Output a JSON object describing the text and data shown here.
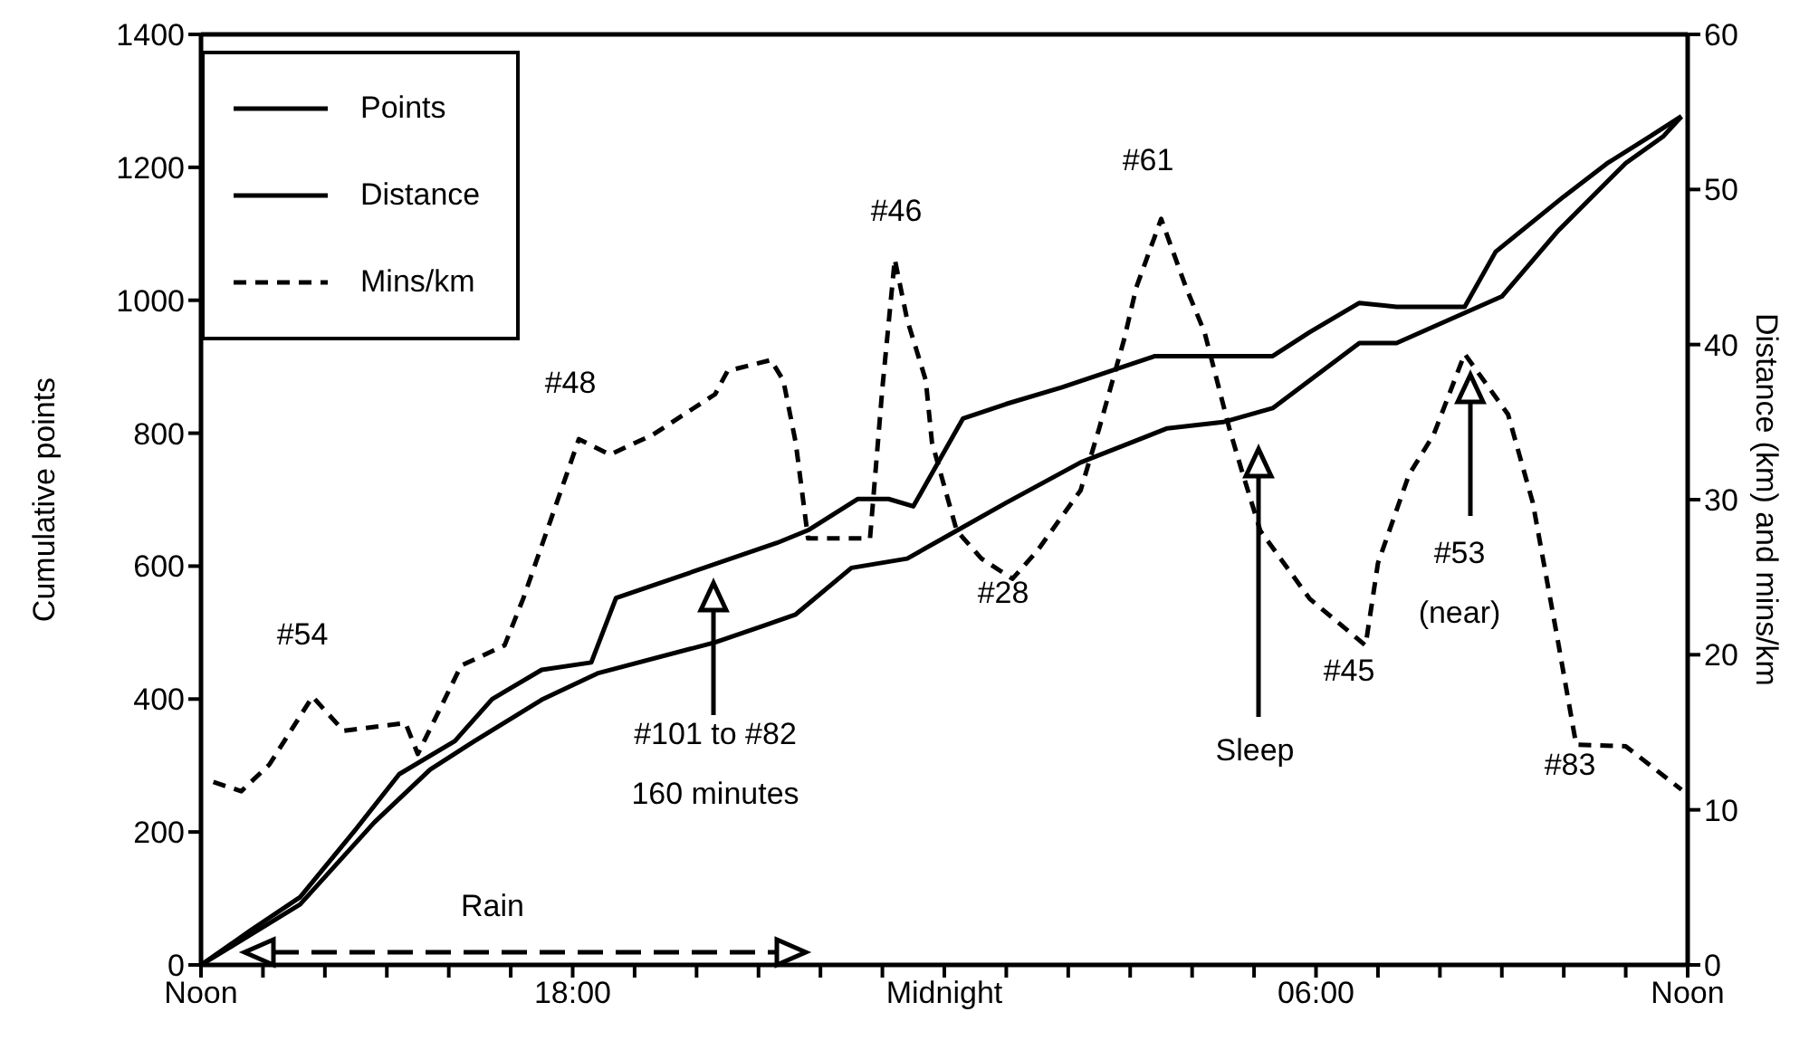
{
  "chart_data": {
    "type": "line",
    "xlim": [
      "2000-01-01T12:00",
      "2000-01-02T12:00"
    ],
    "xticks": [
      {
        "value": "2000-01-01T12:00",
        "label": "Noon"
      },
      {
        "value": "2000-01-01T13:00",
        "label": null
      },
      {
        "value": "2000-01-01T14:00",
        "label": null
      },
      {
        "value": "2000-01-01T15:00",
        "label": null
      },
      {
        "value": "2000-01-01T16:00",
        "label": null
      },
      {
        "value": "2000-01-01T17:00",
        "label": null
      },
      {
        "value": "2000-01-01T18:00",
        "label": "18:00"
      },
      {
        "value": "2000-01-01T19:00",
        "label": null
      },
      {
        "value": "2000-01-01T20:00",
        "label": null
      },
      {
        "value": "2000-01-01T21:00",
        "label": null
      },
      {
        "value": "2000-01-01T22:00",
        "label": null
      },
      {
        "value": "2000-01-01T23:00",
        "label": null
      },
      {
        "value": "2000-01-02T00:00",
        "label": "Midnight"
      },
      {
        "value": "2000-01-02T01:00",
        "label": null
      },
      {
        "value": "2000-01-02T02:00",
        "label": null
      },
      {
        "value": "2000-01-02T03:00",
        "label": null
      },
      {
        "value": "2000-01-02T04:00",
        "label": null
      },
      {
        "value": "2000-01-02T05:00",
        "label": null
      },
      {
        "value": "2000-01-02T06:00",
        "label": "06:00"
      },
      {
        "value": "2000-01-02T07:00",
        "label": null
      },
      {
        "value": "2000-01-02T08:00",
        "label": null
      },
      {
        "value": "2000-01-02T09:00",
        "label": null
      },
      {
        "value": "2000-01-02T10:00",
        "label": null
      },
      {
        "value": "2000-01-02T11:00",
        "label": null
      },
      {
        "value": "2000-01-02T12:00",
        "label": "Noon"
      }
    ],
    "ylim": [
      0,
      1400
    ],
    "yticks": [
      0,
      200,
      400,
      600,
      800,
      1000,
      1200,
      1400
    ],
    "y2lim": [
      0,
      60
    ],
    "y2ticks": [
      0,
      10,
      20,
      30,
      40,
      50,
      60
    ],
    "ylabel": "Cumulative points",
    "y2label": "Distance (km) and mins/km",
    "legend": "top left",
    "series": [
      {
        "name": "Points",
        "color": "#000000",
        "line_style": "solid",
        "x": [
          "2000-01-01T12:00",
          "2000-01-01T12:48",
          "2000-01-01T13:36",
          "2000-01-01T14:30",
          "2000-01-01T15:12",
          "2000-01-01T16:06",
          "2000-01-01T16:42",
          "2000-01-01T17:30",
          "2000-01-01T18:18",
          "2000-01-01T18:42",
          "2000-01-01T21:18",
          "2000-01-01T21:48",
          "2000-01-01T22:36",
          "2000-01-01T23:06",
          "2000-01-01T23:30",
          "2000-01-02T00:18",
          "2000-01-02T01:00",
          "2000-01-02T01:54",
          "2000-01-02T03:24",
          "2000-01-02T04:24",
          "2000-01-02T05:18",
          "2000-01-02T05:54",
          "2000-01-02T06:42",
          "2000-01-02T07:18",
          "2000-01-02T08:24",
          "2000-01-02T08:54",
          "2000-01-02T10:00",
          "2000-01-02T10:42",
          "2000-01-02T11:24",
          "2000-01-02T11:54"
        ],
        "values": [
          0,
          52,
          102,
          204,
          287,
          337,
          400,
          444,
          455,
          552,
          635,
          654,
          701,
          701,
          690,
          822,
          844,
          869,
          916,
          916,
          916,
          952,
          996,
          990,
          990,
          1073,
          1156,
          1206,
          1247,
          1277
        ]
      },
      {
        "name": "Distance",
        "color": "#000000",
        "line_style": "solid",
        "axis": "y2",
        "x": [
          "2000-01-01T12:00",
          "2000-01-01T13:36",
          "2000-01-01T14:48",
          "2000-01-01T15:42",
          "2000-01-01T16:24",
          "2000-01-01T17:30",
          "2000-01-01T18:24",
          "2000-01-01T20:18",
          "2000-01-01T21:06",
          "2000-01-01T21:36",
          "2000-01-01T22:30",
          "2000-01-01T23:24",
          "2000-01-02T00:12",
          "2000-01-02T01:00",
          "2000-01-02T02:12",
          "2000-01-02T03:36",
          "2000-01-02T04:30",
          "2000-01-02T05:18",
          "2000-01-02T06:42",
          "2000-01-02T07:18",
          "2000-01-02T09:00",
          "2000-01-02T09:54",
          "2000-01-02T11:00",
          "2000-01-02T11:36",
          "2000-01-02T11:54"
        ],
        "values": [
          0,
          3.9,
          9.2,
          12.6,
          14.4,
          17.1,
          18.8,
          20.8,
          21.9,
          22.6,
          25.6,
          26.2,
          28.0,
          29.8,
          32.4,
          34.6,
          35.0,
          35.9,
          40.1,
          40.1,
          43.1,
          47.3,
          51.7,
          53.4,
          54.7
        ]
      },
      {
        "name": "Mins/km",
        "color": "#000000",
        "line_style": "dashed",
        "axis": "y2",
        "x": [
          "2000-01-01T12:12",
          "2000-01-01T12:39",
          "2000-01-01T13:06",
          "2000-01-01T13:48",
          "2000-01-01T14:18",
          "2000-01-01T15:18",
          "2000-01-01T15:30",
          "2000-01-01T16:12",
          "2000-01-01T16:54",
          "2000-01-01T17:12",
          "2000-01-01T17:54",
          "2000-01-01T18:06",
          "2000-01-01T18:36",
          "2000-01-01T19:18",
          "2000-01-01T20:18",
          "2000-01-01T20:30",
          "2000-01-01T21:12",
          "2000-01-01T21:24",
          "2000-01-01T21:36",
          "2000-01-01T21:48",
          "2000-01-01T22:48",
          "2000-01-01T23:00",
          "2000-01-01T23:12",
          "2000-01-01T23:24",
          "2000-01-01T23:42",
          "2000-01-01T23:48",
          "2000-01-02T00:12",
          "2000-01-02T00:36",
          "2000-01-02T01:06",
          "2000-01-02T01:30",
          "2000-01-02T02:12",
          "2000-01-02T02:30",
          "2000-01-02T02:54",
          "2000-01-02T03:06",
          "2000-01-02T03:30",
          "2000-01-02T03:54",
          "2000-01-02T04:12",
          "2000-01-02T04:36",
          "2000-01-02T04:48",
          "2000-01-02T05:06",
          "2000-01-02T05:54",
          "2000-01-02T06:48",
          "2000-01-02T07:00",
          "2000-01-02T07:30",
          "2000-01-02T07:54",
          "2000-01-02T08:24",
          "2000-01-02T09:06",
          "2000-01-02T09:30",
          "2000-01-02T09:54",
          "2000-01-02T10:12",
          "2000-01-02T11:00",
          "2000-01-02T11:54"
        ],
        "values": [
          11.8,
          11.2,
          12.9,
          17.3,
          15.1,
          15.6,
          13.6,
          19.3,
          20.6,
          23.6,
          31.6,
          33.9,
          32.9,
          34.2,
          36.8,
          38.3,
          39.0,
          37.7,
          33.7,
          27.5,
          27.5,
          37.2,
          45.5,
          41.6,
          37.7,
          33.7,
          28.0,
          26.2,
          24.9,
          26.7,
          30.6,
          34.6,
          40.3,
          43.7,
          48.1,
          43.7,
          40.8,
          34.6,
          31.9,
          28.0,
          23.6,
          20.6,
          25.9,
          31.6,
          34.2,
          39.4,
          35.5,
          29.8,
          21.0,
          14.2,
          14.1,
          11.3
        ]
      }
    ],
    "annotations": [
      "#54",
      "#48",
      "#46",
      "#61",
      "#28",
      "#45",
      "#53\n(near)",
      "#83",
      "#101 to #82\n160 minutes",
      "Sleep",
      "Rain"
    ]
  }
}
